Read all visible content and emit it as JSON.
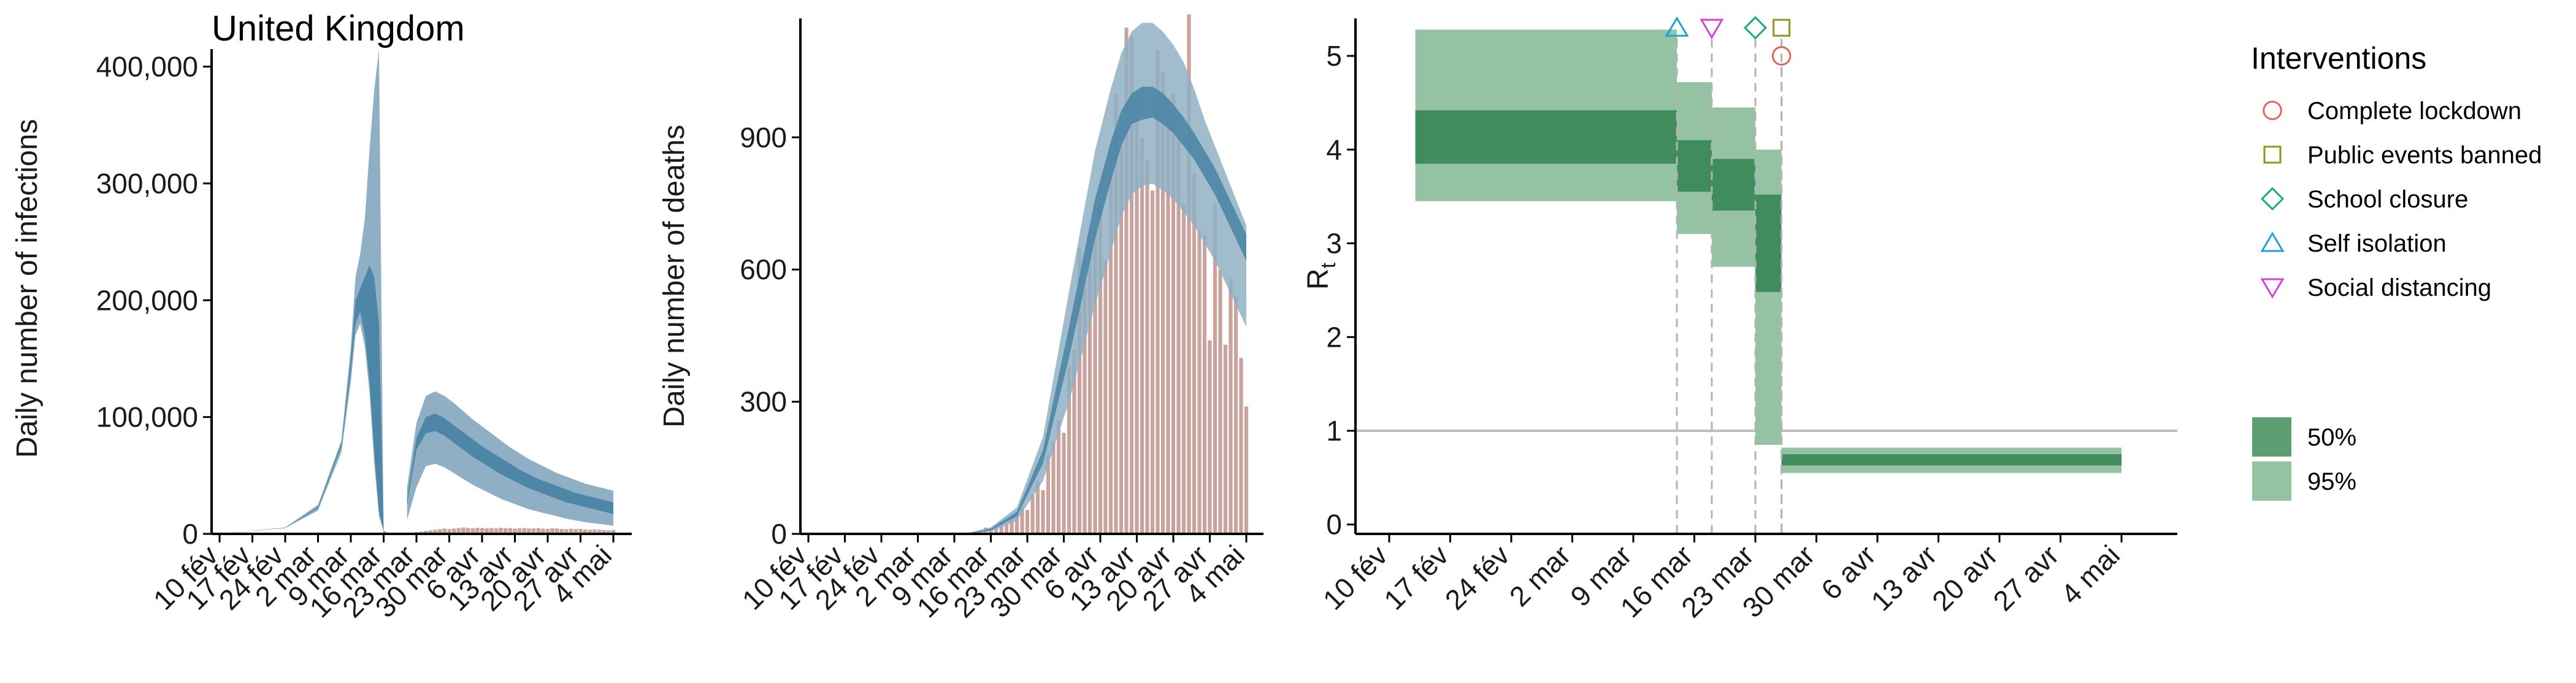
{
  "chart_data": [
    {
      "type": "area",
      "title": "United Kingdom",
      "ylabel": "Daily number of infections",
      "xlabel": "",
      "x_tick_labels": [
        "10 fév",
        "17 fév",
        "24 fév",
        "2 mar",
        "9 mar",
        "16 mar",
        "23 mar",
        "30 mar",
        "6 avr",
        "13 avr",
        "20 avr",
        "27 avr",
        "4 mai"
      ],
      "y_tick_labels": [
        "0",
        "100,000",
        "200,000",
        "300,000",
        "400,000"
      ],
      "ylim": [
        0,
        415000
      ],
      "colors": {
        "band95": "#8fb0c4",
        "band50": "#4d86a6",
        "observed": "#c9a39d"
      },
      "bands": [
        {
          "x": [
            0,
            14,
            21,
            26,
            28,
            29,
            30,
            31,
            32,
            33,
            34,
            35,
            36,
            37,
            38,
            39,
            40,
            41,
            42,
            43,
            44
          ],
          "lo95": [
            0,
            5000,
            20000,
            70000,
            130000,
            170000,
            180000,
            160000,
            120000,
            60000,
            15000,
            3000,
            300,
            0,
            0,
            0,
            0,
            0,
            0,
            0,
            0
          ],
          "hi95": [
            0,
            5500,
            25000,
            80000,
            160000,
            220000,
            240000,
            270000,
            330000,
            380000,
            415000,
            0,
            0,
            0,
            0,
            0,
            0,
            0,
            0,
            0,
            0
          ],
          "lo50": [
            0,
            5200,
            22000,
            75000,
            140000,
            180000,
            190000,
            170000,
            130000,
            70000,
            20000,
            1000,
            0,
            0,
            0,
            0,
            0,
            0,
            0,
            0,
            0
          ],
          "hi50": [
            0,
            5300,
            23000,
            78000,
            150000,
            200000,
            210000,
            220000,
            230000,
            220000,
            180000,
            0,
            0,
            0,
            0,
            0,
            0,
            0,
            0,
            0,
            0
          ]
        },
        {
          "x": [
            40,
            42,
            44,
            46,
            48,
            50,
            52,
            54,
            56,
            58,
            60,
            62,
            64,
            66,
            68,
            70,
            72,
            74,
            76,
            78,
            80,
            82,
            84
          ],
          "lo95": [
            12000,
            40000,
            58000,
            60000,
            57000,
            52000,
            47000,
            42000,
            38000,
            34000,
            30000,
            27000,
            24000,
            21000,
            19000,
            17000,
            15000,
            13000,
            11500,
            10000,
            9000,
            8000,
            7000
          ],
          "hi95": [
            40000,
            95000,
            118000,
            122000,
            118000,
            112000,
            105000,
            98000,
            92000,
            86000,
            80000,
            74000,
            69000,
            64000,
            60000,
            56000,
            52000,
            49000,
            46000,
            43000,
            41000,
            39000,
            37000
          ],
          "lo50": [
            25000,
            72000,
            86000,
            88000,
            84000,
            78000,
            72000,
            66000,
            61000,
            56000,
            51000,
            47000,
            43000,
            39000,
            36000,
            33000,
            30000,
            27000,
            25000,
            23000,
            21000,
            19000,
            17000
          ],
          "hi50": [
            30000,
            82000,
            100000,
            103000,
            99000,
            93000,
            87000,
            81000,
            75000,
            70000,
            65000,
            60000,
            55000,
            51000,
            47000,
            44000,
            41000,
            38000,
            35000,
            33000,
            31000,
            29000,
            27000
          ]
        }
      ],
      "observed": [
        {
          "x": 41,
          "value": 1000
        },
        {
          "x": 42,
          "value": 1500
        },
        {
          "x": 43,
          "value": 2000
        },
        {
          "x": 44,
          "value": 2500
        },
        {
          "x": 45,
          "value": 3000
        },
        {
          "x": 46,
          "value": 3500
        },
        {
          "x": 47,
          "value": 4000
        },
        {
          "x": 48,
          "value": 4500
        },
        {
          "x": 49,
          "value": 4000
        },
        {
          "x": 50,
          "value": 4500
        },
        {
          "x": 51,
          "value": 5000
        },
        {
          "x": 52,
          "value": 5500
        },
        {
          "x": 53,
          "value": 5000
        },
        {
          "x": 54,
          "value": 4800
        },
        {
          "x": 55,
          "value": 5200
        },
        {
          "x": 56,
          "value": 5000
        },
        {
          "x": 57,
          "value": 4800
        },
        {
          "x": 58,
          "value": 5000
        },
        {
          "x": 59,
          "value": 4700
        },
        {
          "x": 60,
          "value": 5200
        },
        {
          "x": 61,
          "value": 4800
        },
        {
          "x": 62,
          "value": 5000
        },
        {
          "x": 63,
          "value": 4500
        },
        {
          "x": 64,
          "value": 4800
        },
        {
          "x": 65,
          "value": 5000
        },
        {
          "x": 66,
          "value": 4600
        },
        {
          "x": 67,
          "value": 4800
        },
        {
          "x": 68,
          "value": 5000
        },
        {
          "x": 69,
          "value": 4500
        },
        {
          "x": 70,
          "value": 4300
        },
        {
          "x": 71,
          "value": 4800
        },
        {
          "x": 72,
          "value": 4600
        },
        {
          "x": 73,
          "value": 4200
        },
        {
          "x": 74,
          "value": 4000
        },
        {
          "x": 75,
          "value": 4400
        },
        {
          "x": 76,
          "value": 4100
        },
        {
          "x": 77,
          "value": 4300
        },
        {
          "x": 78,
          "value": 3800
        },
        {
          "x": 79,
          "value": 3500
        },
        {
          "x": 80,
          "value": 3900
        },
        {
          "x": 81,
          "value": 3600
        },
        {
          "x": 82,
          "value": 3200
        },
        {
          "x": 83,
          "value": 3000
        },
        {
          "x": 84,
          "value": 3400
        }
      ]
    },
    {
      "type": "bar",
      "ylabel": "Daily number of deaths",
      "xlabel": "",
      "x_tick_labels": [
        "10 fév",
        "17 fév",
        "24 fév",
        "2 mar",
        "9 mar",
        "16 mar",
        "23 mar",
        "30 mar",
        "6 avr",
        "13 avr",
        "20 avr",
        "27 avr",
        "4 mai"
      ],
      "y_tick_labels": [
        "0",
        "300",
        "600",
        "900"
      ],
      "ylim": [
        0,
        1170
      ],
      "colors": {
        "bar": "#c9a39d",
        "band95": "#8fb0c4",
        "band50": "#4d86a6"
      },
      "bars": [
        {
          "x": 32,
          "value": 5
        },
        {
          "x": 33,
          "value": 8
        },
        {
          "x": 34,
          "value": 15
        },
        {
          "x": 35,
          "value": 12
        },
        {
          "x": 36,
          "value": 20
        },
        {
          "x": 37,
          "value": 30
        },
        {
          "x": 38,
          "value": 25
        },
        {
          "x": 39,
          "value": 40
        },
        {
          "x": 40,
          "value": 45
        },
        {
          "x": 41,
          "value": 60
        },
        {
          "x": 42,
          "value": 55
        },
        {
          "x": 43,
          "value": 90
        },
        {
          "x": 44,
          "value": 120
        },
        {
          "x": 45,
          "value": 100
        },
        {
          "x": 46,
          "value": 180
        },
        {
          "x": 47,
          "value": 210
        },
        {
          "x": 48,
          "value": 260
        },
        {
          "x": 49,
          "value": 230
        },
        {
          "x": 50,
          "value": 380
        },
        {
          "x": 51,
          "value": 420
        },
        {
          "x": 52,
          "value": 650
        },
        {
          "x": 53,
          "value": 560
        },
        {
          "x": 54,
          "value": 690
        },
        {
          "x": 55,
          "value": 700
        },
        {
          "x": 56,
          "value": 750
        },
        {
          "x": 57,
          "value": 620
        },
        {
          "x": 58,
          "value": 880
        },
        {
          "x": 59,
          "value": 1000
        },
        {
          "x": 60,
          "value": 930
        },
        {
          "x": 61,
          "value": 1150
        },
        {
          "x": 62,
          "value": 1130
        },
        {
          "x": 63,
          "value": 1000
        },
        {
          "x": 64,
          "value": 900
        },
        {
          "x": 65,
          "value": 850
        },
        {
          "x": 66,
          "value": 780
        },
        {
          "x": 67,
          "value": 1100
        },
        {
          "x": 68,
          "value": 1050
        },
        {
          "x": 69,
          "value": 990
        },
        {
          "x": 70,
          "value": 1000
        },
        {
          "x": 71,
          "value": 900
        },
        {
          "x": 72,
          "value": 750
        },
        {
          "x": 73,
          "value": 1180
        },
        {
          "x": 74,
          "value": 820
        },
        {
          "x": 75,
          "value": 690
        },
        {
          "x": 76,
          "value": 680
        },
        {
          "x": 77,
          "value": 440
        },
        {
          "x": 78,
          "value": 750
        },
        {
          "x": 79,
          "value": 600
        },
        {
          "x": 80,
          "value": 430
        },
        {
          "x": 81,
          "value": 580
        },
        {
          "x": 82,
          "value": 540
        },
        {
          "x": 83,
          "value": 400
        },
        {
          "x": 84,
          "value": 290
        }
      ],
      "band": {
        "x": [
          30,
          35,
          40,
          45,
          50,
          55,
          58,
          60,
          62,
          64,
          66,
          68,
          70,
          72,
          74,
          76,
          78,
          80,
          82,
          84
        ],
        "lo95": [
          0,
          5,
          30,
          120,
          300,
          520,
          640,
          720,
          770,
          790,
          795,
          780,
          760,
          730,
          700,
          660,
          620,
          570,
          520,
          470
        ],
        "hi95": [
          0,
          15,
          60,
          220,
          550,
          870,
          1010,
          1090,
          1140,
          1160,
          1160,
          1140,
          1110,
          1070,
          1010,
          940,
          880,
          820,
          760,
          700
        ],
        "lo50": [
          0,
          8,
          40,
          160,
          400,
          670,
          800,
          880,
          930,
          940,
          945,
          930,
          910,
          880,
          850,
          810,
          770,
          720,
          670,
          620
        ],
        "hi50": [
          0,
          12,
          50,
          190,
          470,
          760,
          890,
          960,
          1000,
          1015,
          1015,
          1000,
          975,
          945,
          910,
          870,
          830,
          780,
          730,
          680
        ]
      }
    },
    {
      "type": "area",
      "ylabel": "R",
      "ylabel_subscript": "t",
      "xlabel": "",
      "x_tick_labels": [
        "10 fév",
        "17 fév",
        "24 fév",
        "2 mar",
        "9 mar",
        "16 mar",
        "23 mar",
        "30 mar",
        "6 avr",
        "13 avr",
        "20 avr",
        "27 avr",
        "4 mai"
      ],
      "y_tick_labels": [
        "0",
        "1",
        "2",
        "3",
        "4",
        "5"
      ],
      "ylim": [
        -0.1,
        5.4
      ],
      "reference_line": 1,
      "colors": {
        "band95": "#94c2a3",
        "band50": "#418c5c",
        "ref": "#bdbdbd",
        "dashed": "#b3b3b3"
      },
      "steps": [
        {
          "x0": 3,
          "x1": 33,
          "lo95": 3.45,
          "hi95": 5.28,
          "lo50": 3.85,
          "hi50": 4.42
        },
        {
          "x0": 33,
          "x1": 37,
          "lo95": 3.1,
          "hi95": 4.72,
          "lo50": 3.55,
          "hi50": 4.1
        },
        {
          "x0": 37,
          "x1": 42,
          "lo95": 2.75,
          "hi95": 4.45,
          "lo50": 3.35,
          "hi50": 3.9
        },
        {
          "x0": 42,
          "x1": 45,
          "lo95": 0.85,
          "hi95": 4.0,
          "lo50": 2.48,
          "hi50": 3.52
        },
        {
          "x0": 45,
          "x1": 84,
          "lo95": 0.55,
          "hi95": 0.82,
          "lo50": 0.63,
          "hi50": 0.75
        }
      ],
      "interventions": [
        {
          "name": "Self isolation",
          "x": 33,
          "y": 5.3,
          "marker": "triangle-up",
          "color": "#1aa2dc"
        },
        {
          "name": "Social distancing",
          "x": 37,
          "y": 5.3,
          "marker": "triangle-down",
          "color": "#d63fe0"
        },
        {
          "name": "School closure",
          "x": 42,
          "y": 5.3,
          "marker": "diamond",
          "color": "#1aab7a"
        },
        {
          "name": "Public events banned",
          "x": 45,
          "y": 5.3,
          "marker": "square",
          "color": "#8a9a1a"
        },
        {
          "name": "Complete lockdown",
          "x": 45,
          "y": 5.0,
          "marker": "circle",
          "color": "#e8625a"
        }
      ],
      "legend": {
        "title": "Interventions",
        "position": "right",
        "items": [
          {
            "label": "Complete lockdown",
            "marker": "circle",
            "color": "#e8625a"
          },
          {
            "label": "Public events banned",
            "marker": "square",
            "color": "#8a9a1a"
          },
          {
            "label": "School closure",
            "marker": "diamond",
            "color": "#1aab7a"
          },
          {
            "label": "Self isolation",
            "marker": "triangle-up",
            "color": "#1aa2dc"
          },
          {
            "label": "Social distancing",
            "marker": "triangle-down",
            "color": "#d63fe0"
          }
        ],
        "bands": [
          {
            "label": "50%",
            "color": "#5a9e72"
          },
          {
            "label": "95%",
            "color": "#94c2a3"
          }
        ]
      }
    }
  ]
}
